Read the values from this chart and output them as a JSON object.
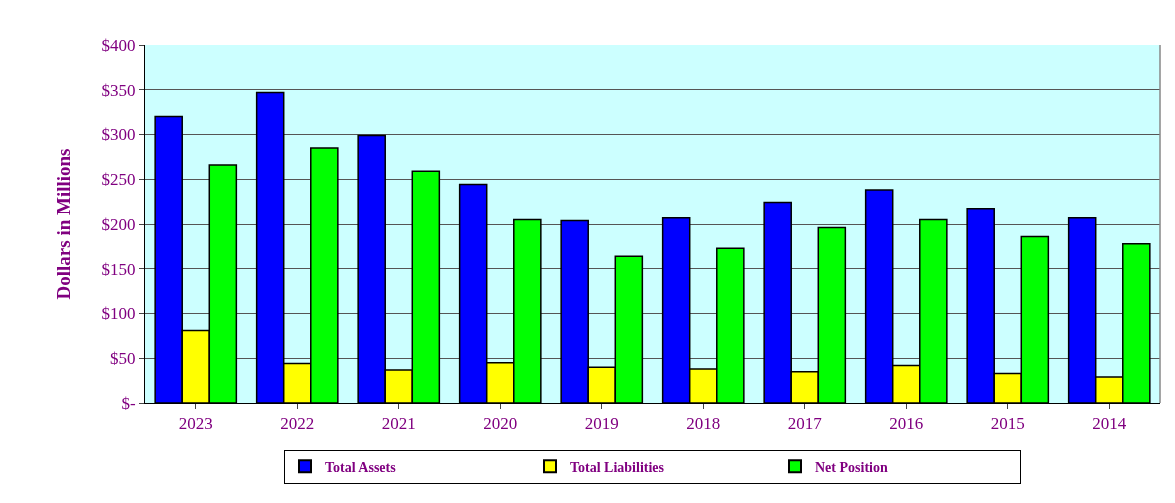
{
  "chart_data": {
    "type": "bar",
    "ylabel": "Dollars in Millions",
    "categories": [
      "2023",
      "2022",
      "2021",
      "2020",
      "2019",
      "2018",
      "2017",
      "2016",
      "2015",
      "2014"
    ],
    "series": [
      {
        "name": "Total Assets",
        "color": "#0000ff",
        "values": [
          320,
          347,
          299,
          244,
          204,
          207,
          224,
          238,
          217,
          207
        ]
      },
      {
        "name": "Total Liabilities",
        "color": "#ffff00",
        "values": [
          81,
          44,
          37,
          45,
          40,
          38,
          35,
          42,
          33,
          29
        ]
      },
      {
        "name": "Net Position",
        "color": "#00ff00",
        "values": [
          266,
          285,
          259,
          205,
          164,
          173,
          196,
          205,
          186,
          178
        ]
      }
    ],
    "ylim": [
      0,
      400
    ],
    "yticks": [
      {
        "value": 0,
        "label": "$-"
      },
      {
        "value": 50,
        "label": "$50"
      },
      {
        "value": 100,
        "label": "$100"
      },
      {
        "value": 150,
        "label": "$150"
      },
      {
        "value": 200,
        "label": "$200"
      },
      {
        "value": 250,
        "label": "$250"
      },
      {
        "value": 300,
        "label": "$300"
      },
      {
        "value": 350,
        "label": "$350"
      },
      {
        "value": 400,
        "label": "$400"
      }
    ],
    "grid": "y",
    "legend": "bottom"
  }
}
